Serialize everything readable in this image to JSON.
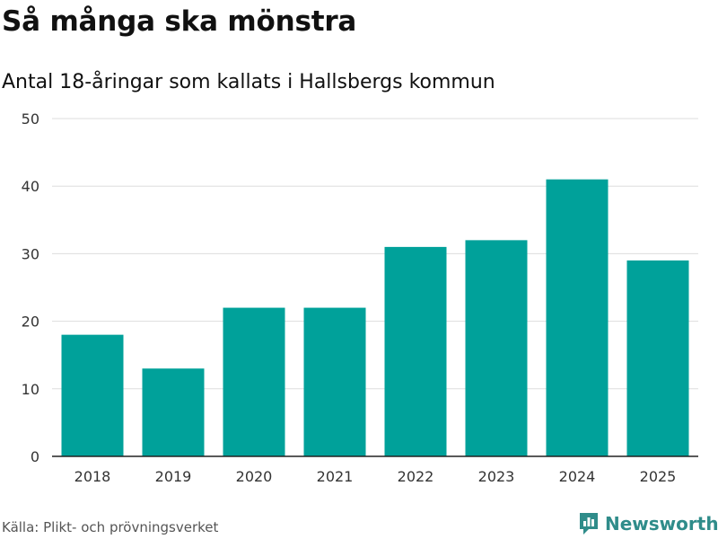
{
  "header": {
    "title": "Så många ska mönstra",
    "subtitle": "Antal 18-åringar som kallats i Hallsbergs kommun"
  },
  "footer": {
    "source": "Källa: Plikt- och prövningsverket",
    "brand": "Newsworthy",
    "brand_icon": "newsworthy-logo-icon"
  },
  "colors": {
    "bar": "#00a19a",
    "grid": "#dddddd",
    "axis": "#222222",
    "brand": "#2f8c8a"
  },
  "chart_data": {
    "type": "bar",
    "title": "Så många ska mönstra",
    "subtitle": "Antal 18-åringar som kallats i Hallsbergs kommun",
    "categories": [
      "2018",
      "2019",
      "2020",
      "2021",
      "2022",
      "2023",
      "2024",
      "2025"
    ],
    "values": [
      18,
      13,
      22,
      22,
      31,
      32,
      41,
      29
    ],
    "xlabel": "",
    "ylabel": "",
    "ylim": [
      0,
      50
    ],
    "yticks": [
      0,
      10,
      20,
      30,
      40,
      50
    ],
    "grid": true,
    "legend": "none"
  }
}
